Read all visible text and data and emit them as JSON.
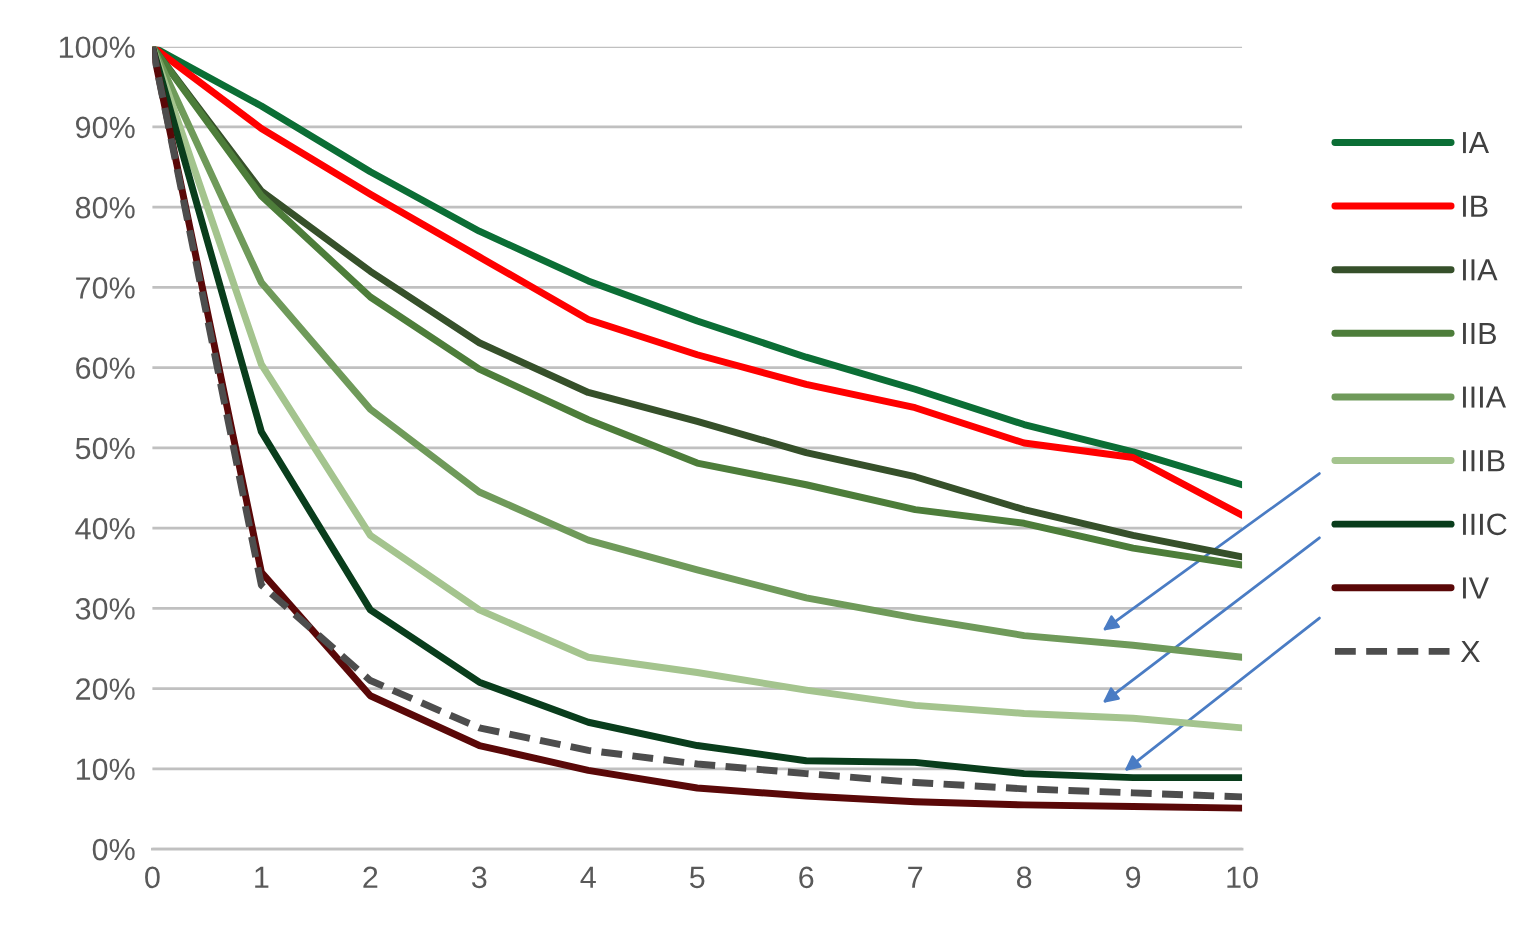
{
  "chart_data": {
    "type": "line",
    "x": [
      0,
      1,
      2,
      3,
      4,
      5,
      6,
      7,
      8,
      9,
      10
    ],
    "xlim": [
      0,
      10
    ],
    "xticks": [
      0,
      1,
      2,
      3,
      4,
      5,
      6,
      7,
      8,
      9,
      10
    ],
    "ylim": [
      0,
      100
    ],
    "yticks": [
      {
        "value": 0,
        "label": "0%"
      },
      {
        "value": 10,
        "label": "10%"
      },
      {
        "value": 20,
        "label": "20%"
      },
      {
        "value": 30,
        "label": "30%"
      },
      {
        "value": 40,
        "label": "40%"
      },
      {
        "value": 50,
        "label": "50%"
      },
      {
        "value": 60,
        "label": "60%"
      },
      {
        "value": 70,
        "label": "70%"
      },
      {
        "value": 80,
        "label": "80%"
      },
      {
        "value": 90,
        "label": "90%"
      },
      {
        "value": 100,
        "label": "100%"
      }
    ],
    "grid": "y",
    "legend": "right",
    "marker": "none",
    "series": [
      {
        "name": "IA",
        "color": "#0b6e35",
        "line_style": "solid",
        "values": [
          100,
          92.6,
          84.4,
          77,
          70.8,
          65.8,
          61.3,
          57.3,
          52.9,
          49.5,
          45.4
        ]
      },
      {
        "name": "IB",
        "color": "#ff0000",
        "line_style": "solid",
        "values": [
          100,
          89.8,
          81.6,
          73.8,
          66,
          61.6,
          57.9,
          55,
          50.6,
          48.8,
          41.6
        ]
      },
      {
        "name": "IIA",
        "color": "#36502a",
        "line_style": "solid",
        "values": [
          100,
          82,
          72,
          63.1,
          56.9,
          53.3,
          49.4,
          46.4,
          42.3,
          39.1,
          36.4
        ]
      },
      {
        "name": "IIB",
        "color": "#4d7d3a",
        "line_style": "solid",
        "values": [
          100,
          81.4,
          68.8,
          59.8,
          53.5,
          48.1,
          45.4,
          42.3,
          40.6,
          37.5,
          35.4
        ]
      },
      {
        "name": "IIIA",
        "color": "#6f9a5a",
        "line_style": "solid",
        "values": [
          100,
          70.6,
          54.8,
          44.5,
          38.5,
          34.8,
          31.3,
          28.8,
          26.6,
          25.4,
          23.9
        ]
      },
      {
        "name": "IIIB",
        "color": "#a4c48e",
        "line_style": "solid",
        "values": [
          100,
          60.4,
          39.1,
          29.8,
          23.9,
          22,
          19.8,
          17.9,
          16.9,
          16.3,
          15.1
        ]
      },
      {
        "name": "IIIC",
        "color": "#093d1c",
        "line_style": "solid",
        "values": [
          100,
          52,
          29.8,
          20.8,
          15.8,
          12.9,
          11,
          10.8,
          9.4,
          8.9,
          8.9
        ]
      },
      {
        "name": "IV",
        "color": "#5a0808",
        "line_style": "solid",
        "values": [
          100,
          34.5,
          19.1,
          12.9,
          9.8,
          7.6,
          6.6,
          5.9,
          5.5,
          5.3,
          5.1
        ]
      },
      {
        "name": "X",
        "color": "#4d4d4d",
        "line_style": "dashed",
        "values": [
          100,
          32.9,
          21,
          15.1,
          12.3,
          10.6,
          9.4,
          8.3,
          7.5,
          7,
          6.5
        ]
      }
    ]
  }
}
